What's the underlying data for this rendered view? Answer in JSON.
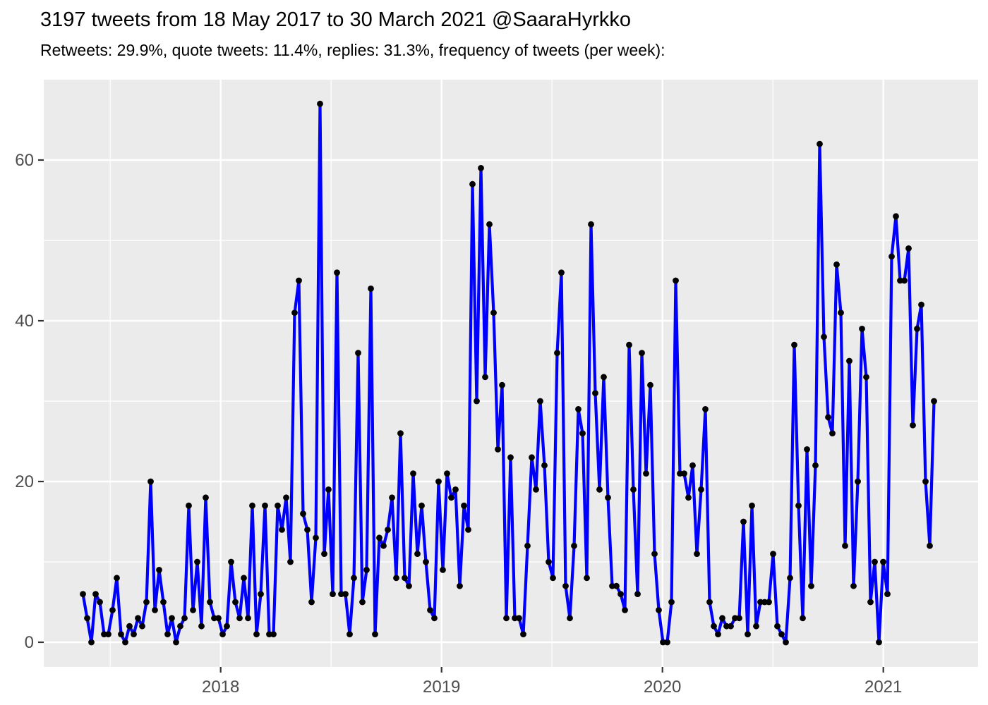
{
  "title": "3197 tweets from 18 May 2017 to 30 March 2021 @SaaraHyrkko",
  "subtitle": "Retweets: 29.9%, quote tweets: 11.4%, replies: 31.3%, frequency of tweets (per week):",
  "chart_data": {
    "type": "line",
    "series_name": "tweets per week",
    "start_date_label": "18 May 2017",
    "end_date_label": "30 March 2021",
    "x_unit": "week index from 18 May 2017",
    "values": [
      6,
      3,
      0,
      6,
      5,
      1,
      1,
      4,
      8,
      1,
      0,
      2,
      1,
      3,
      2,
      5,
      20,
      4,
      9,
      5,
      1,
      3,
      0,
      2,
      3,
      17,
      4,
      10,
      2,
      18,
      5,
      3,
      3,
      1,
      2,
      10,
      5,
      3,
      8,
      3,
      17,
      1,
      6,
      17,
      1,
      1,
      17,
      14,
      18,
      10,
      41,
      45,
      16,
      14,
      5,
      13,
      67,
      11,
      19,
      6,
      46,
      6,
      6,
      1,
      8,
      36,
      5,
      9,
      44,
      1,
      13,
      12,
      14,
      18,
      8,
      26,
      8,
      7,
      21,
      11,
      17,
      10,
      4,
      3,
      20,
      9,
      21,
      18,
      19,
      7,
      17,
      14,
      57,
      30,
      59,
      33,
      52,
      41,
      24,
      32,
      3,
      23,
      3,
      3,
      1,
      12,
      23,
      19,
      30,
      22,
      10,
      8,
      36,
      46,
      7,
      3,
      12,
      29,
      26,
      8,
      52,
      31,
      19,
      33,
      18,
      7,
      7,
      6,
      4,
      37,
      19,
      6,
      36,
      21,
      32,
      11,
      4,
      0,
      0,
      5,
      45,
      21,
      21,
      18,
      22,
      11,
      19,
      29,
      5,
      2,
      1,
      3,
      2,
      2,
      3,
      3,
      15,
      1,
      17,
      2,
      5,
      5,
      5,
      11,
      2,
      1,
      0,
      8,
      37,
      17,
      3,
      24,
      7,
      22,
      62,
      38,
      28,
      26,
      47,
      41,
      12,
      35,
      7,
      20,
      39,
      33,
      5,
      10,
      0,
      10,
      6,
      48,
      53,
      45,
      45,
      49,
      27,
      39,
      42,
      20,
      12,
      30
    ],
    "x_ticks": [
      {
        "label": "2018",
        "week": 32.53
      },
      {
        "label": "2019",
        "week": 84.7
      },
      {
        "label": "2020",
        "week": 136.87
      },
      {
        "label": "2021",
        "week": 189.03
      }
    ],
    "x_minor_weeks": [
      6.45,
      58.62,
      110.78,
      162.95
    ],
    "y_ticks": [
      {
        "label": "0",
        "value": 0
      },
      {
        "label": "20",
        "value": 20
      },
      {
        "label": "40",
        "value": 40
      },
      {
        "label": "60",
        "value": 60
      }
    ],
    "y_minor_values": [
      10,
      30,
      50
    ],
    "ylim_panel": [
      -3.05,
      69.9
    ],
    "grid": "major and minor, white on gray panel",
    "legend": "none",
    "colors": {
      "line": "#0000FF",
      "point": "#000000",
      "panel_bg": "#EBEBEB",
      "grid": "#FFFFFF",
      "axis_text": "#4D4D4D",
      "tick_mark": "#333333",
      "title_text": "#000000",
      "page_bg": "#FFFFFF"
    }
  }
}
